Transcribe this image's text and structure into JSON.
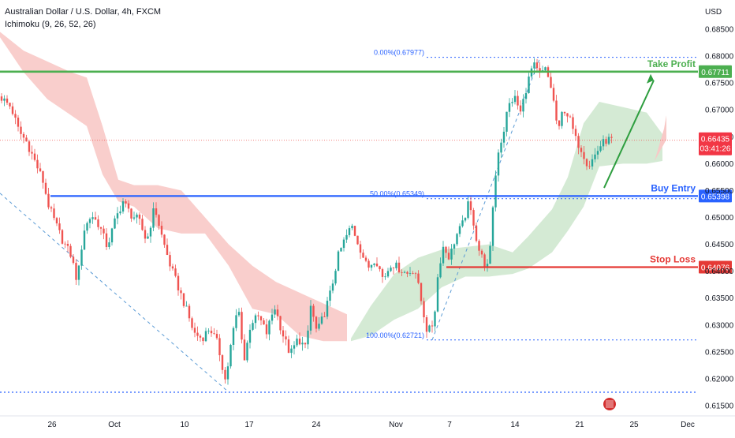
{
  "header": {
    "symbol_line": "Australian Dollar / U.S. Dollar, 4h, FXCM",
    "indicator_line": "Ichimoku (9, 26, 52, 26)"
  },
  "chart_data": {
    "type": "candlestick",
    "currency_label": "USD",
    "y_ticks": [
      "0.68500",
      "0.68000",
      "0.67500",
      "0.67000",
      "0.66500",
      "0.66000",
      "0.65500",
      "0.65000",
      "0.64500",
      "0.64000",
      "0.63500",
      "0.63000",
      "0.62500",
      "0.62000",
      "0.61500"
    ],
    "ylim": [
      0.6135,
      0.6877
    ],
    "x_ticks": [
      "26",
      "Oct",
      "10",
      "17",
      "24",
      "Nov",
      "7",
      "14",
      "21",
      "25",
      "Dec"
    ],
    "levels": [
      {
        "name": "Take Profit",
        "label": "Take Profit",
        "value": 0.67711,
        "value_label": "0.67711",
        "color": "#4caf50"
      },
      {
        "name": "Buy Entry",
        "label": "Buy Entry",
        "value": 0.65398,
        "value_label": "0.65398",
        "color": "#2962ff"
      },
      {
        "name": "Stop Loss",
        "label": "Stop Loss",
        "value": 0.64076,
        "value_label": "0.64076",
        "color": "#e53935"
      }
    ],
    "current_price": {
      "value": 0.66435,
      "label": "0.66435",
      "countdown": "03:41:26",
      "color": "#f23645"
    },
    "fibonacci": [
      {
        "label": "0.00%(0.67977)",
        "value": 0.67977
      },
      {
        "label": "50.00%(0.65349)",
        "value": 0.65349
      },
      {
        "label": "100.00%(0.62721)",
        "value": 0.62721
      }
    ],
    "support_line": {
      "value": 0.6175
    },
    "bull_color": "#26a69a",
    "bear_color": "#ef5350",
    "cloud_bear_color": "#f8c9c7",
    "cloud_bull_color": "#cfe8cf",
    "close_path": [
      [
        0,
        0.6725
      ],
      [
        14,
        0.6705
      ],
      [
        24,
        0.666
      ],
      [
        34,
        0.664
      ],
      [
        44,
        0.6605
      ],
      [
        54,
        0.657
      ],
      [
        62,
        0.652
      ],
      [
        70,
        0.649
      ],
      [
        80,
        0.6455
      ],
      [
        90,
        0.643
      ],
      [
        98,
        0.638
      ],
      [
        106,
        0.6475
      ],
      [
        116,
        0.6505
      ],
      [
        126,
        0.6485
      ],
      [
        136,
        0.6445
      ],
      [
        146,
        0.6495
      ],
      [
        156,
        0.653
      ],
      [
        166,
        0.6505
      ],
      [
        176,
        0.6495
      ],
      [
        186,
        0.6455
      ],
      [
        196,
        0.652
      ],
      [
        206,
        0.646
      ],
      [
        216,
        0.641
      ],
      [
        226,
        0.637
      ],
      [
        236,
        0.633
      ],
      [
        246,
        0.6285
      ],
      [
        256,
        0.6275
      ],
      [
        266,
        0.6295
      ],
      [
        276,
        0.6265
      ],
      [
        286,
        0.6195
      ],
      [
        294,
        0.6275
      ],
      [
        302,
        0.6335
      ],
      [
        310,
        0.6235
      ],
      [
        318,
        0.6305
      ],
      [
        328,
        0.6315
      ],
      [
        338,
        0.6285
      ],
      [
        348,
        0.6335
      ],
      [
        358,
        0.6285
      ],
      [
        368,
        0.6245
      ],
      [
        378,
        0.6275
      ],
      [
        388,
        0.6255
      ],
      [
        394,
        0.6335
      ],
      [
        402,
        0.6285
      ],
      [
        412,
        0.6325
      ],
      [
        420,
        0.6365
      ],
      [
        428,
        0.6425
      ],
      [
        436,
        0.6455
      ],
      [
        446,
        0.6485
      ],
      [
        456,
        0.6445
      ],
      [
        466,
        0.6405
      ],
      [
        476,
        0.6425
      ],
      [
        486,
        0.6385
      ],
      [
        496,
        0.6415
      ],
      [
        506,
        0.6405
      ],
      [
        516,
        0.6395
      ],
      [
        526,
        0.6405
      ],
      [
        534,
        0.6345
      ],
      [
        542,
        0.6285
      ],
      [
        550,
        0.6305
      ],
      [
        556,
        0.6405
      ],
      [
        562,
        0.6445
      ],
      [
        570,
        0.6425
      ],
      [
        578,
        0.6465
      ],
      [
        586,
        0.6485
      ],
      [
        594,
        0.6525
      ],
      [
        600,
        0.6495
      ],
      [
        606,
        0.6445
      ],
      [
        614,
        0.6415
      ],
      [
        620,
        0.6405
      ],
      [
        626,
        0.6545
      ],
      [
        632,
        0.6625
      ],
      [
        638,
        0.6655
      ],
      [
        644,
        0.6705
      ],
      [
        652,
        0.6725
      ],
      [
        660,
        0.6695
      ],
      [
        668,
        0.6745
      ],
      [
        676,
        0.6785
      ],
      [
        684,
        0.6765
      ],
      [
        692,
        0.6775
      ],
      [
        700,
        0.6735
      ],
      [
        708,
        0.6655
      ],
      [
        714,
        0.6705
      ],
      [
        722,
        0.6685
      ],
      [
        730,
        0.6645
      ],
      [
        738,
        0.6625
      ],
      [
        746,
        0.6595
      ],
      [
        754,
        0.6615
      ],
      [
        762,
        0.6635
      ],
      [
        770,
        0.6645
      ],
      [
        776,
        0.66435
      ]
    ]
  }
}
